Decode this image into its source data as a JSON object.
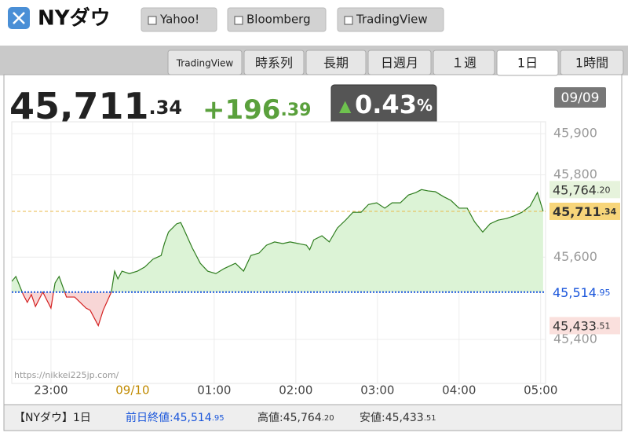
{
  "header": {
    "title": "NYダウ",
    "links": [
      "Yahoo!",
      "Bloomberg",
      "TradingView"
    ]
  },
  "tabs": {
    "items": [
      "TradingView",
      "時系列",
      "長期",
      "日週月",
      "１週",
      "1日",
      "1時間"
    ],
    "active": 5
  },
  "quote": {
    "change": "+196.39",
    "arrow": "▲",
    "percent": "0.43%",
    "date": "09/09"
  },
  "chart_data": {
    "type": "line",
    "color": "#2e7d1e",
    "down_color": "#d42020",
    "fill": "#dcf3d6",
    "down_fill": "#f8d6d6",
    "x": [
      22.52,
      22.57,
      22.66,
      22.71,
      22.76,
      22.81,
      22.9,
      23.0,
      23.05,
      23.1,
      23.19,
      23.29,
      23.43,
      23.48,
      23.58,
      23.64,
      23.74,
      23.78,
      23.82,
      23.87,
      23.96,
      24.06,
      24.15,
      24.25,
      24.35,
      24.39,
      24.44,
      24.54,
      24.59,
      24.63,
      24.73,
      24.83,
      24.92,
      25.02,
      25.12,
      25.26,
      25.36,
      25.45,
      25.55,
      25.64,
      25.74,
      25.84,
      25.93,
      26.03,
      26.13,
      26.17,
      26.22,
      26.32,
      26.41,
      26.51,
      26.61,
      26.7,
      26.8,
      26.89,
      26.99,
      27.09,
      27.18,
      27.28,
      27.38,
      27.47,
      27.54,
      27.62,
      27.71,
      27.81,
      27.9,
      28.0,
      28.1,
      28.19,
      28.29,
      28.38,
      28.48,
      28.58,
      28.67,
      28.77,
      28.87,
      28.96,
      29.03
    ],
    "values": [
      45541,
      45553,
      45509,
      45490,
      45509,
      45480,
      45515,
      45476,
      45537,
      45553,
      45503,
      45503,
      45476,
      45471,
      45433.51,
      45471,
      45515,
      45566,
      45547,
      45566,
      45560,
      45566,
      45576,
      45595,
      45604,
      45633,
      45661,
      45681,
      45684,
      45667,
      45623,
      45585,
      45566,
      45560,
      45572,
      45585,
      45566,
      45604,
      45610,
      45629,
      45637,
      45633,
      45637,
      45633,
      45629,
      45618,
      45642,
      45652,
      45637,
      45671,
      45690,
      45709,
      45709,
      45728,
      45732,
      45719,
      45732,
      45732,
      45751,
      45757,
      45764.2,
      45761,
      45759,
      45747,
      45738,
      45719,
      45719,
      45686,
      45661,
      45681,
      45690,
      45694,
      45700,
      45709,
      45724,
      45757,
      45711.34
    ],
    "xlim": [
      22.52,
      29.06
    ],
    "ylim": [
      45293,
      45929
    ],
    "xticks": [
      {
        "value": 23,
        "label": "23:00"
      },
      {
        "value": 24,
        "label": "09/10",
        "color": "#c08a00"
      },
      {
        "value": 25,
        "label": "01:00"
      },
      {
        "value": 26,
        "label": "02:00"
      },
      {
        "value": 27,
        "label": "03:00"
      },
      {
        "value": 28,
        "label": "04:00"
      },
      {
        "value": 29,
        "label": "05:00"
      }
    ],
    "yticks": [
      {
        "value": 45400,
        "label": "45,400"
      },
      {
        "value": 45600,
        "label": "45,600"
      },
      {
        "value": 45800,
        "label": "45,800"
      },
      {
        "value": 45900,
        "label": "45,900"
      }
    ],
    "grid": true,
    "last": {
      "value": 45711.34,
      "label": "45,711.34",
      "color": "#e8b84a",
      "bg": "#f7d57a"
    },
    "reference_lines": [
      {
        "name": "前日終値:",
        "value": 45514.95,
        "label": "45,514.95",
        "color": "#1a56db"
      },
      {
        "name": "高値:",
        "value": 45764.2,
        "label": "45,764.20",
        "bg": "#e6f3dc"
      },
      {
        "name": "安値:",
        "value": 45433.51,
        "label": "45,433.51",
        "bg": "#fae0dd"
      }
    ],
    "watermark": "https://nikkei225jp.com/"
  },
  "footer": {
    "title": "【NYダウ】1日"
  }
}
